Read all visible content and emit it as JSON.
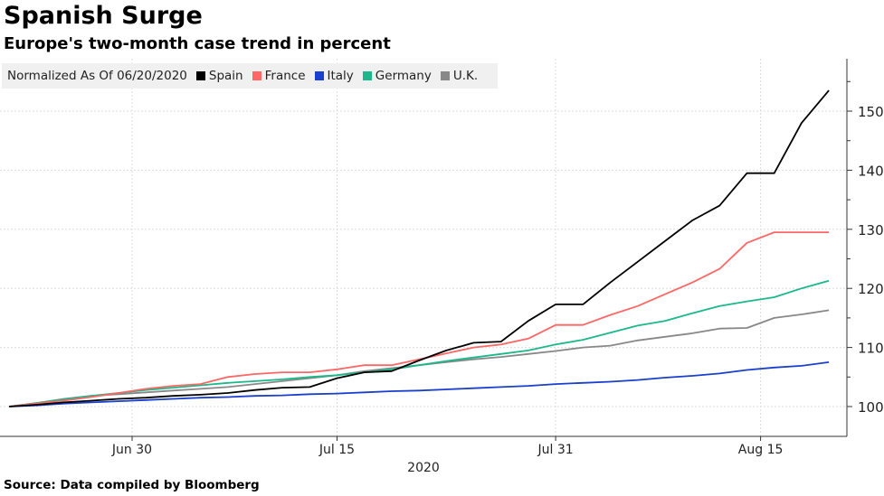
{
  "chart_data": {
    "type": "line",
    "title": "Spanish Surge",
    "subtitle": "Europe's two-month case trend in percent",
    "legend_note": "Normalized As Of 06/20/2020",
    "source": "Source: Data compiled by Bloomberg",
    "xlabel": "2020",
    "ylabel": "",
    "ylim": [
      97,
      158
    ],
    "yticks": [
      100,
      110,
      120,
      130,
      140,
      150
    ],
    "xticks": [
      {
        "label": "Jun 30",
        "day": 10
      },
      {
        "label": "Jul 15",
        "day": 25
      },
      {
        "label": "Jul 31",
        "day": 41
      },
      {
        "label": "Aug 15",
        "day": 56
      }
    ],
    "x_start_date": "2020-06-20",
    "x_days": [
      1,
      3,
      5,
      7,
      9,
      11,
      13,
      15,
      17,
      19,
      21,
      23,
      25,
      27,
      29,
      31,
      33,
      35,
      37,
      39,
      41,
      43,
      45,
      47,
      49,
      51,
      53,
      55,
      57,
      59,
      61
    ],
    "grid": true,
    "legend_placement": "top-left",
    "series": [
      {
        "name": "Spain",
        "color": "#000000",
        "values": [
          100,
          100.3,
          100.7,
          101,
          101.3,
          101.5,
          101.8,
          102,
          102.3,
          102.8,
          103.2,
          103.3,
          104.8,
          105.8,
          106,
          107.8,
          109.5,
          110.8,
          111,
          114.5,
          117.3,
          117.3,
          121,
          124.5,
          128,
          131.5,
          134,
          139.5,
          139.5,
          148,
          153.5
        ]
      },
      {
        "name": "France",
        "color": "#ff6666",
        "values": [
          100,
          100.5,
          101,
          101.6,
          102.3,
          103,
          103.5,
          103.8,
          105,
          105.5,
          105.8,
          105.8,
          106.3,
          107,
          107,
          108,
          109,
          110,
          110.5,
          111.5,
          113.8,
          113.8,
          115.5,
          117,
          119,
          121,
          123.3,
          127.7,
          129.5,
          129.5,
          129.5
        ]
      },
      {
        "name": "Italy",
        "color": "#1a3fcc",
        "values": [
          100,
          100.2,
          100.5,
          100.7,
          100.9,
          101.1,
          101.3,
          101.5,
          101.6,
          101.8,
          101.9,
          102.1,
          102.2,
          102.4,
          102.6,
          102.7,
          102.9,
          103.1,
          103.3,
          103.5,
          103.8,
          104,
          104.2,
          104.5,
          104.9,
          105.2,
          105.6,
          106.2,
          106.6,
          106.9,
          107.5
        ]
      },
      {
        "name": "Germany",
        "color": "#1ab88a",
        "values": [
          100,
          100.6,
          101.2,
          101.8,
          102.3,
          102.8,
          103.2,
          103.6,
          104,
          104.3,
          104.6,
          105,
          105.3,
          105.8,
          106.3,
          107,
          107.7,
          108.3,
          108.9,
          109.5,
          110.5,
          111.3,
          112.5,
          113.7,
          114.5,
          115.8,
          117,
          117.8,
          118.5,
          120,
          121.3
        ]
      },
      {
        "name": "U.K.",
        "color": "#888888",
        "values": [
          100,
          100.6,
          101.3,
          101.8,
          102.1,
          102.4,
          102.7,
          103,
          103.3,
          103.8,
          104.3,
          104.8,
          105.3,
          106,
          106.5,
          107,
          107.5,
          108,
          108.4,
          108.9,
          109.4,
          110,
          110.3,
          111.2,
          111.8,
          112.4,
          113.2,
          113.3,
          115,
          115.6,
          116.3
        ]
      }
    ]
  }
}
